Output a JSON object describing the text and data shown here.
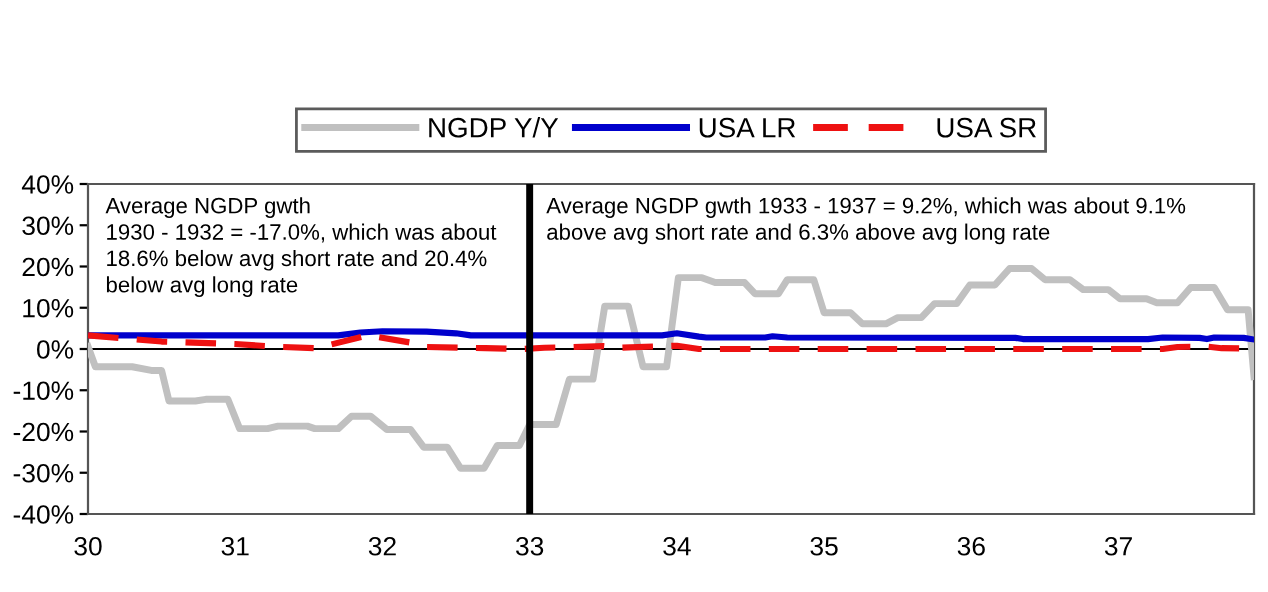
{
  "chart_data": {
    "type": "line",
    "annotations": [
      "Average NGDP gwth\n1930 - 1932 = -17.0%, which was about\n18.6% below avg short rate and 20.4%\nbelow avg long rate",
      "Average NGDP gwth 1933 - 1937 = 9.2%, which was about 9.1%\nabove avg short rate and 6.3% above avg long rate"
    ],
    "series": [
      {
        "name": "NGDP Y/Y",
        "color": "#c0c0c0",
        "line_style": "solid",
        "x": [
          30.0,
          30.05,
          30.3,
          30.43,
          30.5,
          30.55,
          30.73,
          30.8,
          30.95,
          31.03,
          31.22,
          31.29,
          31.49,
          31.54,
          31.7,
          31.79,
          31.92,
          32.03,
          32.19,
          32.28,
          32.44,
          32.53,
          32.69,
          32.78,
          32.93,
          33.0,
          33.18,
          33.27,
          33.43,
          33.51,
          33.67,
          33.77,
          33.93,
          34.01,
          34.17,
          34.26,
          34.46,
          34.53,
          34.69,
          34.75,
          34.93,
          35.0,
          35.18,
          35.26,
          35.42,
          35.5,
          35.66,
          35.75,
          35.9,
          35.99,
          36.16,
          36.26,
          36.41,
          36.5,
          36.67,
          36.76,
          36.93,
          37.01,
          37.19,
          37.26,
          37.4,
          37.49,
          37.65,
          37.74,
          37.88,
          37.92
        ],
        "values": [
          0.6,
          -4.3,
          -4.3,
          -5.2,
          -5.2,
          -12.6,
          -12.6,
          -12.2,
          -12.2,
          -19.3,
          -19.3,
          -18.7,
          -18.7,
          -19.3,
          -19.3,
          -16.3,
          -16.3,
          -19.5,
          -19.5,
          -23.8,
          -23.8,
          -28.9,
          -28.9,
          -23.4,
          -23.4,
          -18.3,
          -18.3,
          -7.3,
          -7.3,
          10.4,
          10.4,
          -4.3,
          -4.3,
          17.3,
          17.3,
          16.1,
          16.1,
          13.4,
          13.4,
          16.8,
          16.8,
          8.8,
          8.8,
          6.1,
          6.1,
          7.6,
          7.6,
          11.0,
          11.0,
          15.5,
          15.5,
          19.5,
          19.5,
          16.8,
          16.8,
          14.4,
          14.4,
          12.2,
          12.2,
          11.2,
          11.2,
          14.9,
          14.9,
          9.5,
          9.5,
          -6.7
        ]
      },
      {
        "name": "USA LR",
        "color": "#0000cc",
        "line_style": "solid",
        "x": [
          30.0,
          31.7,
          31.85,
          32.0,
          32.3,
          32.5,
          32.6,
          33.9,
          34.0,
          34.15,
          34.2,
          34.6,
          34.65,
          34.75,
          36.3,
          36.35,
          37.2,
          37.3,
          37.55,
          37.6,
          37.65,
          37.85,
          37.92
        ],
        "values": [
          3.3,
          3.3,
          4.0,
          4.3,
          4.2,
          3.8,
          3.3,
          3.3,
          3.8,
          3.0,
          2.8,
          2.8,
          3.1,
          2.8,
          2.7,
          2.4,
          2.4,
          2.8,
          2.7,
          2.4,
          2.8,
          2.7,
          2.3
        ]
      },
      {
        "name": "USA SR",
        "color": "#ee1111",
        "line_style": "dashed",
        "x": [
          30.0,
          30.5,
          31.0,
          31.3,
          31.55,
          31.9,
          32.2,
          32.3,
          32.7,
          32.95,
          33.1,
          33.5,
          33.6,
          34.0,
          34.15,
          37.3,
          37.4,
          37.6,
          37.7,
          37.92
        ],
        "values": [
          3.3,
          1.8,
          1.2,
          0.5,
          0.2,
          3.3,
          1.5,
          0.5,
          0.2,
          0.0,
          0.3,
          0.7,
          0.3,
          0.8,
          0.0,
          0.0,
          0.5,
          0.6,
          0.2,
          0.1
        ]
      }
    ],
    "xlim": [
      30,
      37.92
    ],
    "xticks": [
      30,
      31,
      32,
      33,
      34,
      35,
      36,
      37
    ],
    "ylim": [
      -40,
      40
    ],
    "yticks": [
      {
        "value": -40,
        "label": "-40%"
      },
      {
        "value": -30,
        "label": "-30%"
      },
      {
        "value": -20,
        "label": "-20%"
      },
      {
        "value": -10,
        "label": "-10%"
      },
      {
        "value": 0,
        "label": "0%"
      },
      {
        "value": 10,
        "label": "10%"
      },
      {
        "value": 20,
        "label": "20%"
      },
      {
        "value": 30,
        "label": "30%"
      },
      {
        "value": 40,
        "label": "40%"
      }
    ],
    "ref_lines": [
      {
        "axis": "x",
        "value": 33,
        "color": "#000000"
      },
      {
        "axis": "y",
        "value": 0,
        "color": "#000000"
      }
    ],
    "grid": false,
    "legend": "top"
  }
}
